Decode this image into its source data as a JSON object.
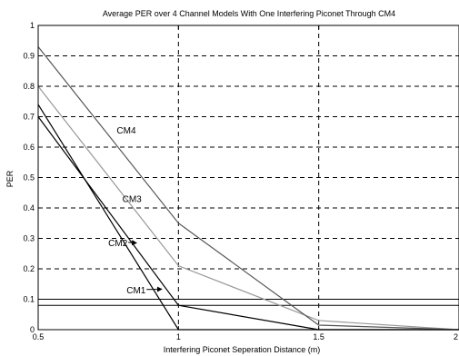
{
  "chart_data": {
    "type": "line",
    "title": "Average PER over 4 Channel Models With One Interfering Piconet Through CM4",
    "xlabel": "Interfering Piconet Seperation Distance (m)",
    "ylabel": "PER",
    "xlim": [
      0.5,
      2
    ],
    "ylim": [
      0,
      1
    ],
    "xticks": [
      0.5,
      1,
      1.5,
      2
    ],
    "xtick_labels": [
      "0.5",
      "1",
      "1.5",
      "2"
    ],
    "yticks": [
      0,
      0.1,
      0.2,
      0.3,
      0.4,
      0.5,
      0.6,
      0.7,
      0.8,
      0.9,
      1
    ],
    "ytick_labels": [
      "0",
      "0.1",
      "0.2",
      "0.3",
      "0.4",
      "0.5",
      "0.6",
      "0.7",
      "0.8",
      "0.9",
      "1"
    ],
    "grid": true,
    "reference_lines": [
      0.08,
      0.1
    ],
    "series": [
      {
        "name": "CM1",
        "x": [
          0.5,
          1,
          1.5,
          2
        ],
        "y": [
          0.7,
          0.08,
          0.0,
          0.0
        ],
        "color": "#000000",
        "label_at": [
          0.815,
          0.12
        ],
        "arrow_to": [
          0.94,
          0.133
        ]
      },
      {
        "name": "CM2",
        "x": [
          0.5,
          1,
          1.5,
          2
        ],
        "y": [
          0.74,
          0.0,
          0.0,
          0.0
        ],
        "color": "#000000",
        "label_at": [
          0.75,
          0.275
        ],
        "arrow_to": [
          0.85,
          0.285
        ]
      },
      {
        "name": "CM3",
        "x": [
          0.5,
          1,
          1.5,
          2
        ],
        "y": [
          0.8,
          0.21,
          0.03,
          0.0
        ],
        "color": "#999999",
        "label_at": [
          0.8,
          0.42
        ]
      },
      {
        "name": "CM4",
        "x": [
          0.5,
          1,
          1.5,
          2
        ],
        "y": [
          0.93,
          0.35,
          0.015,
          0.0
        ],
        "color": "#555555",
        "label_at": [
          0.78,
          0.645
        ]
      }
    ]
  }
}
